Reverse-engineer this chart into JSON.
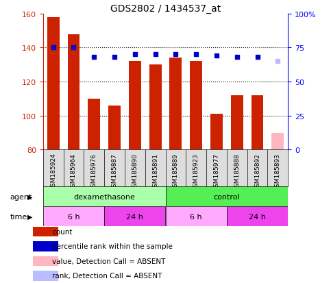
{
  "title": "GDS2802 / 1434537_at",
  "samples": [
    "GSM185924",
    "GSM185964",
    "GSM185976",
    "GSM185887",
    "GSM185890",
    "GSM185891",
    "GSM185889",
    "GSM185923",
    "GSM185977",
    "GSM185888",
    "GSM185892",
    "GSM185893"
  ],
  "counts": [
    158,
    148,
    110,
    106,
    132,
    130,
    134,
    132,
    101,
    112,
    112,
    90
  ],
  "absent": [
    false,
    false,
    false,
    false,
    false,
    false,
    false,
    false,
    false,
    false,
    false,
    true
  ],
  "percentile_ranks": [
    75,
    75,
    68,
    68,
    70,
    70,
    70,
    70,
    69,
    68,
    68,
    65
  ],
  "ylim_left": [
    80,
    160
  ],
  "ylim_right": [
    0,
    100
  ],
  "yticks_left": [
    80,
    100,
    120,
    140,
    160
  ],
  "yticks_right": [
    0,
    25,
    50,
    75,
    100
  ],
  "bar_color": "#CC2200",
  "absent_bar_color": "#FFB6C1",
  "dot_color": "#0000CC",
  "absent_dot_color": "#BBBBFF",
  "grid_color": "#000000",
  "grid_ticks": [
    100,
    120,
    140
  ],
  "agent_segments": [
    {
      "label": "dexamethasone",
      "start": 0,
      "end": 6,
      "color": "#AAFFAA"
    },
    {
      "label": "control",
      "start": 6,
      "end": 12,
      "color": "#55EE55"
    }
  ],
  "time_segments": [
    {
      "label": "6 h",
      "start": 0,
      "end": 3,
      "color": "#FFAAFF"
    },
    {
      "label": "24 h",
      "start": 3,
      "end": 6,
      "color": "#EE44EE"
    },
    {
      "label": "6 h",
      "start": 6,
      "end": 9,
      "color": "#FFAAFF"
    },
    {
      "label": "24 h",
      "start": 9,
      "end": 12,
      "color": "#EE44EE"
    }
  ],
  "legend_items": [
    {
      "label": "count",
      "color": "#CC2200"
    },
    {
      "label": "percentile rank within the sample",
      "color": "#0000CC"
    },
    {
      "label": "value, Detection Call = ABSENT",
      "color": "#FFB6C1"
    },
    {
      "label": "rank, Detection Call = ABSENT",
      "color": "#BBBBFF"
    }
  ],
  "sample_bg_color": "#DDDDDD",
  "left_label_color": "#CC2200",
  "right_label_color": "#0000FF"
}
